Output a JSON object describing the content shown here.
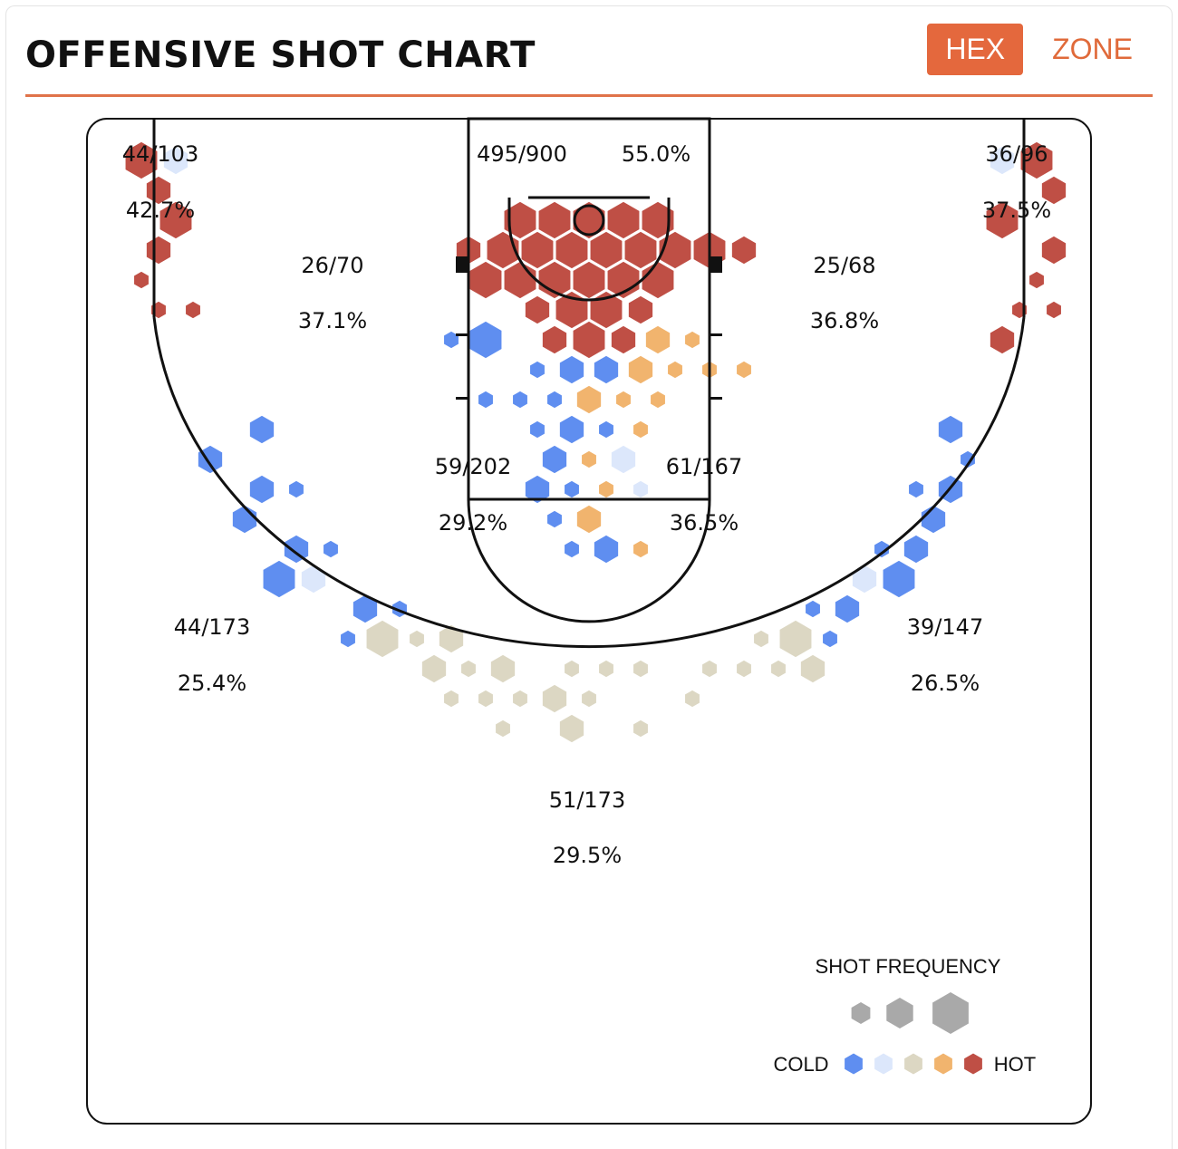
{
  "header": {
    "title": "OFFENSIVE SHOT CHART",
    "tabs": [
      {
        "label": "HEX",
        "active": true
      },
      {
        "label": "ZONE",
        "active": false
      }
    ]
  },
  "chart_data": {
    "type": "hexbin-shot-chart",
    "title": "OFFENSIVE SHOT CHART",
    "colors": {
      "cold": "#5f8ef0",
      "cool": "#dce7fb",
      "neutral": "#dcd7c3",
      "warm": "#f1b46e",
      "hot": "#bf4f45"
    },
    "zones": [
      {
        "id": "left-corner-3",
        "made_attempts": "44/103",
        "pct": "42.7%"
      },
      {
        "id": "restricted-area",
        "made_attempts": "495/900",
        "pct": "55.0%"
      },
      {
        "id": "right-corner-3",
        "made_attempts": "36/96",
        "pct": "37.5%"
      },
      {
        "id": "left-short-baseline",
        "made_attempts": "26/70",
        "pct": "37.1%"
      },
      {
        "id": "right-short-baseline",
        "made_attempts": "25/68",
        "pct": "36.8%"
      },
      {
        "id": "left-paint",
        "made_attempts": "59/202",
        "pct": "29.2%"
      },
      {
        "id": "right-paint",
        "made_attempts": "61/167",
        "pct": "36.5%"
      },
      {
        "id": "left-wing-3",
        "made_attempts": "44/173",
        "pct": "25.4%"
      },
      {
        "id": "right-wing-3",
        "made_attempts": "39/147",
        "pct": "26.5%"
      },
      {
        "id": "top-of-key-3",
        "made_attempts": "51/173",
        "pct": "29.5%"
      }
    ],
    "hexes": [
      [
        "hot",
        3,
        -84,
        -14
      ],
      [
        "hot",
        3,
        -84,
        7
      ],
      [
        "hot",
        3,
        -73,
        12
      ],
      [
        "hot",
        3,
        -73,
        -7
      ],
      [
        "hot",
        3,
        -63,
        -14
      ],
      [
        "hot",
        3,
        -63,
        5
      ],
      [
        "hot",
        3,
        -55,
        -7
      ],
      [
        "hot",
        3,
        -45,
        -14
      ],
      [
        "hot",
        3,
        -45,
        14
      ],
      [
        "hot",
        3,
        -42,
        8
      ],
      [
        "hot",
        3,
        -21,
        -14
      ],
      [
        "hot",
        3,
        -12,
        -14
      ],
      [
        "hot",
        3,
        -8,
        8
      ],
      [
        "hot",
        3,
        -2,
        -7
      ],
      [
        "hot",
        3,
        0,
        -14
      ],
      [
        "hot",
        3,
        0,
        20
      ],
      [
        "hot",
        3,
        8,
        8
      ],
      [
        "hot",
        3,
        12,
        -14
      ],
      [
        "hot",
        3,
        21,
        -14
      ],
      [
        "hot",
        3,
        26,
        14
      ],
      [
        "hot",
        3,
        45,
        -14
      ],
      [
        "hot",
        3,
        45,
        14
      ],
      [
        "hot",
        3,
        55,
        -7
      ],
      [
        "hot",
        3,
        63,
        -14
      ],
      [
        "hot",
        3,
        63,
        5
      ],
      [
        "hot",
        3,
        73,
        -7
      ],
      [
        "hot",
        3,
        73,
        12
      ],
      [
        "hot",
        3,
        84,
        -14
      ],
      [
        "hot",
        3,
        84,
        7
      ],
      [
        "hot",
        2,
        -25,
        -7
      ],
      [
        "hot",
        2,
        -16,
        -7
      ],
      [
        "hot",
        2,
        -22,
        4
      ],
      [
        "hot",
        2,
        -13,
        4
      ],
      [
        "hot",
        2,
        -4,
        4
      ],
      [
        "hot",
        2,
        -8,
        -7
      ],
      [
        "hot",
        2,
        8,
        -7
      ],
      [
        "hot",
        2,
        16,
        -7
      ],
      [
        "hot",
        2,
        25,
        -7
      ],
      [
        "hot",
        2,
        22,
        4
      ],
      [
        "hot",
        2,
        13,
        4
      ],
      [
        "hot",
        2,
        4,
        4
      ],
      [
        "hot",
        2,
        -4,
        16
      ],
      [
        "hot",
        2,
        4,
        16
      ],
      [
        "hot",
        2,
        -12,
        16
      ],
      [
        "hot",
        2,
        12,
        16
      ],
      [
        "hot",
        2,
        8,
        28
      ],
      [
        "hot",
        2,
        -16,
        28
      ],
      [
        "hot",
        2,
        0,
        28
      ],
      [
        "hot",
        2,
        16,
        28
      ],
      [
        "hot",
        2,
        24,
        28
      ]
    ]
  },
  "legend": {
    "title": "SHOT FREQUENCY",
    "cold_label": "COLD",
    "hot_label": "HOT",
    "swatches": [
      "cold",
      "cool",
      "neutral",
      "warm",
      "hot"
    ]
  }
}
